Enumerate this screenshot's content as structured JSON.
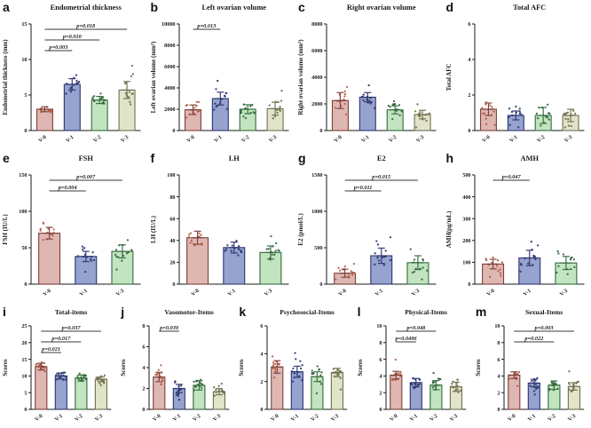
{
  "figure": {
    "background": "#ffffff",
    "axis_color": "#1a1a1a",
    "bracket_color": "#3a3a3a",
    "colors": {
      "fills": [
        "#dfb7b2",
        "#95a3ce",
        "#c3e4c0",
        "#e2e4ca"
      ],
      "strokes": [
        "#7b3f3b",
        "#2e3472",
        "#336b3d",
        "#6f7050"
      ],
      "dots": [
        "#b4593a",
        "#28306b",
        "#2f6136",
        "#6a6b48"
      ]
    }
  },
  "chart_data": [
    {
      "letter": "a",
      "type": "bar",
      "row": 0,
      "title": "Endometrial thickness",
      "ylabel": "Endometrial thickness (mm)",
      "ylim": [
        0,
        15
      ],
      "yticks": [
        0,
        5,
        10,
        15
      ],
      "categories": [
        "V-0",
        "V-1",
        "V-2",
        "V-3"
      ],
      "values": [
        3.0,
        6.5,
        4.3,
        5.7
      ],
      "errors": [
        0.35,
        0.8,
        0.5,
        1.2
      ],
      "p_annotations": [
        {
          "label": "p=0.003",
          "from": 0,
          "to": 1
        },
        {
          "label": "p=0.010",
          "from": 0,
          "to": 2
        },
        {
          "label": "p=0.018",
          "from": 0,
          "to": 3
        }
      ]
    },
    {
      "letter": "b",
      "type": "bar",
      "row": 0,
      "title": "Left ovarian volume",
      "ylabel": "Left ovarian volume (mm³)",
      "ylim": [
        0,
        10000
      ],
      "yticks": [
        0,
        2000,
        4000,
        6000,
        8000,
        10000
      ],
      "categories": [
        "V-0",
        "V-1",
        "V-2",
        "V-3"
      ],
      "values": [
        1950,
        3000,
        2000,
        2050
      ],
      "errors": [
        450,
        600,
        420,
        600
      ],
      "p_annotations": [
        {
          "label": "p=0.013",
          "from": 0,
          "to": 1
        }
      ]
    },
    {
      "letter": "c",
      "type": "bar",
      "row": 0,
      "title": "Right ovarian volume",
      "ylabel": "Right ovarian volume (mm³)",
      "ylim": [
        0,
        8000
      ],
      "yticks": [
        0,
        2000,
        4000,
        6000,
        8000
      ],
      "categories": [
        "V-0",
        "V-1",
        "V-2",
        "V-3"
      ],
      "values": [
        2250,
        2500,
        1550,
        1200
      ],
      "errors": [
        600,
        350,
        300,
        320
      ],
      "p_annotations": []
    },
    {
      "letter": "d",
      "type": "bar",
      "row": 0,
      "title": "Total AFC",
      "ylabel": "Total AFC",
      "ylim": [
        0,
        6
      ],
      "yticks": [
        0,
        2,
        4,
        6
      ],
      "categories": [
        "V-0",
        "V-1",
        "V-2",
        "V-3"
      ],
      "values": [
        1.2,
        0.85,
        0.85,
        0.85
      ],
      "errors": [
        0.35,
        0.25,
        0.45,
        0.35
      ],
      "p_annotations": []
    },
    {
      "letter": "e",
      "type": "bar",
      "row": 1,
      "title": "FSH",
      "ylabel": "FSH (IU/L)",
      "ylim": [
        0,
        150
      ],
      "yticks": [
        0,
        50,
        100,
        150
      ],
      "categories": [
        "V-0",
        "V-1",
        "V-3"
      ],
      "values": [
        70,
        38,
        45
      ],
      "errors": [
        8,
        7,
        9
      ],
      "p_annotations": [
        {
          "label": "p=0.004",
          "from": 0,
          "to": 1
        },
        {
          "label": "p=0.007",
          "from": 0,
          "to": 2
        }
      ]
    },
    {
      "letter": "f",
      "type": "bar",
      "row": 1,
      "title": "LH",
      "ylabel": "LH (IU/L)",
      "ylim": [
        0,
        100
      ],
      "yticks": [
        0,
        20,
        40,
        60,
        80,
        100
      ],
      "categories": [
        "V-0",
        "V-1",
        "V-3"
      ],
      "values": [
        42.5,
        33.5,
        29
      ],
      "errors": [
        6,
        5,
        6
      ],
      "p_annotations": []
    },
    {
      "letter": "g",
      "type": "bar",
      "row": 1,
      "title": "E2",
      "ylabel": "E2 (pmol/L)",
      "ylim": [
        0,
        1500
      ],
      "yticks": [
        0,
        500,
        1000,
        1500
      ],
      "categories": [
        "V-0",
        "V-1",
        "V-3"
      ],
      "values": [
        150,
        390,
        295
      ],
      "errors": [
        55,
        105,
        95
      ],
      "p_annotations": [
        {
          "label": "p=0.011",
          "from": 0,
          "to": 1
        },
        {
          "label": "p=0.015",
          "from": 0,
          "to": 2
        }
      ]
    },
    {
      "letter": "h",
      "type": "bar",
      "row": 1,
      "title": "AMH",
      "ylabel": "AMH(pg/mL)",
      "ylim": [
        0,
        500
      ],
      "yticks": [
        0,
        100,
        200,
        300,
        400,
        500
      ],
      "categories": [
        "V-0",
        "V-1",
        "V-3"
      ],
      "values": [
        92,
        120,
        97
      ],
      "errors": [
        22,
        35,
        30
      ],
      "p_annotations": [
        {
          "label": "p=0.047",
          "from": 0,
          "to": 1
        }
      ]
    },
    {
      "letter": "i",
      "type": "bar",
      "row": 2,
      "title": "Total-items",
      "ylabel": "Scores",
      "ylim": [
        0,
        25
      ],
      "yticks": [
        0,
        5,
        10,
        15,
        20,
        25
      ],
      "categories": [
        "V-0",
        "V-1",
        "V-2",
        "V-3"
      ],
      "values": [
        12.8,
        10.0,
        9.4,
        9.0
      ],
      "errors": [
        1.0,
        0.9,
        0.9,
        0.7
      ],
      "p_annotations": [
        {
          "label": "p=0.021",
          "from": 0,
          "to": 1
        },
        {
          "label": "p=0.017",
          "from": 0,
          "to": 2
        },
        {
          "label": "p=0.037",
          "from": 0,
          "to": 3
        }
      ]
    },
    {
      "letter": "j",
      "type": "bar",
      "row": 2,
      "title": "Vasomotor-Items",
      "ylabel": "Scores",
      "ylim": [
        0,
        8
      ],
      "yticks": [
        0,
        2,
        4,
        6,
        8
      ],
      "categories": [
        "V-0",
        "V-1",
        "V-2",
        "V-3"
      ],
      "values": [
        3.1,
        2.0,
        2.3,
        1.7
      ],
      "errors": [
        0.45,
        0.4,
        0.45,
        0.3
      ],
      "p_annotations": [
        {
          "label": "p=0.039",
          "from": 0,
          "to": 1
        }
      ]
    },
    {
      "letter": "k",
      "type": "bar",
      "row": 2,
      "title": "Psychosocial-Items",
      "ylabel": "Scores",
      "ylim": [
        0,
        6
      ],
      "yticks": [
        0,
        2,
        4,
        6
      ],
      "categories": [
        "V-0",
        "V-1",
        "V-2",
        "V-3"
      ],
      "values": [
        3.05,
        2.7,
        2.35,
        2.65
      ],
      "errors": [
        0.45,
        0.4,
        0.35,
        0.3
      ],
      "p_annotations": []
    },
    {
      "letter": "l",
      "type": "bar",
      "row": 2,
      "title": "Physical-Items",
      "ylabel": "Scores",
      "ylim": [
        0,
        10
      ],
      "yticks": [
        0,
        2,
        4,
        6,
        8,
        10
      ],
      "categories": [
        "V-0",
        "V-1",
        "V-2",
        "V-3"
      ],
      "values": [
        4.1,
        3.2,
        2.9,
        2.7
      ],
      "errors": [
        0.45,
        0.5,
        0.55,
        0.55
      ],
      "p_annotations": [
        {
          "label": "p=0.0496",
          "from": 0,
          "to": 1
        },
        {
          "label": "p=0.048",
          "from": 0,
          "to": 2
        }
      ]
    },
    {
      "letter": "m",
      "type": "bar",
      "row": 2,
      "title": "Sexual-Items",
      "ylabel": "Scores",
      "ylim": [
        0,
        10
      ],
      "yticks": [
        0,
        2,
        4,
        6,
        8,
        10
      ],
      "categories": [
        "V-0",
        "V-1",
        "V-2",
        "V-3"
      ],
      "values": [
        4.1,
        3.15,
        2.9,
        2.75
      ],
      "errors": [
        0.4,
        0.45,
        0.5,
        0.45
      ],
      "p_annotations": [
        {
          "label": "p=0.022",
          "from": 0,
          "to": 2
        },
        {
          "label": "p=0.003",
          "from": 0,
          "to": 3
        }
      ]
    }
  ]
}
